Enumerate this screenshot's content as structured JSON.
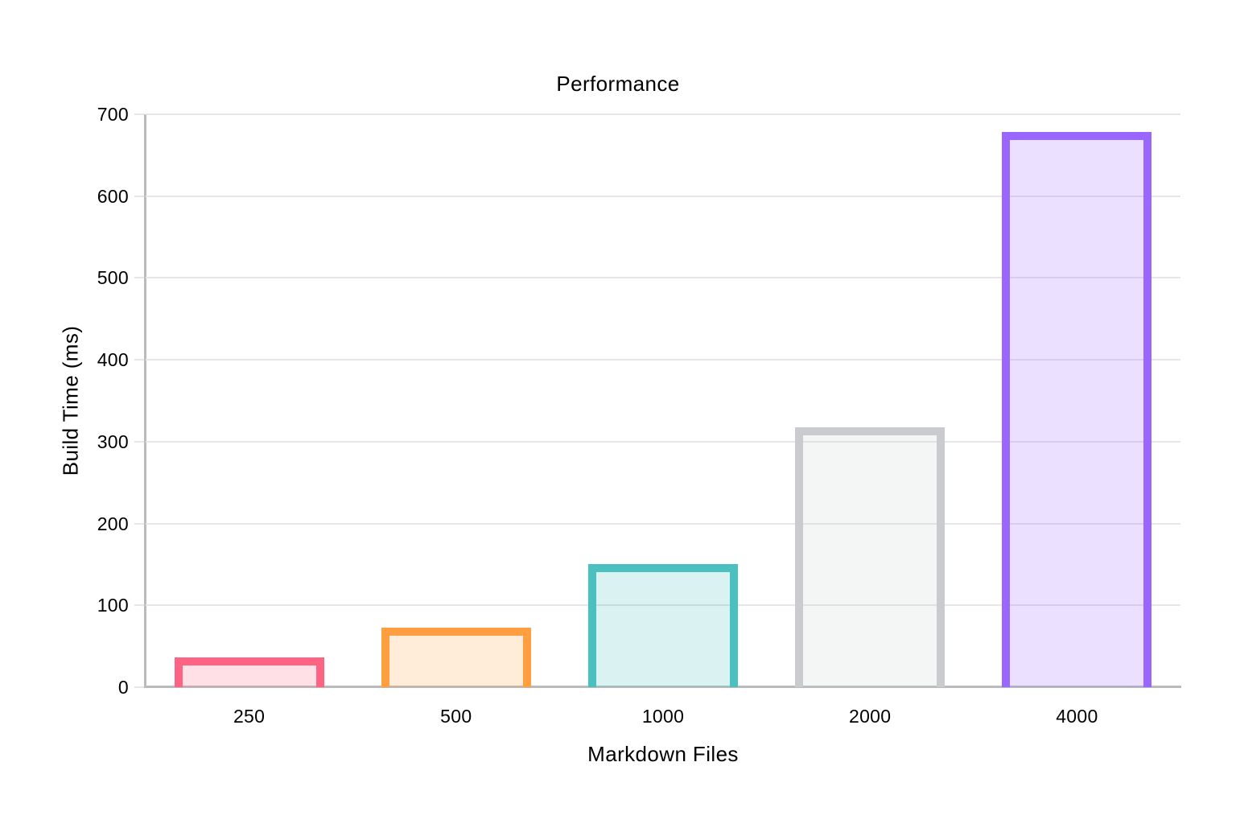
{
  "chart_data": {
    "type": "bar",
    "title": "Performance",
    "xlabel": "Markdown Files",
    "ylabel": "Build Time (ms)",
    "categories": [
      "250",
      "500",
      "1000",
      "2000",
      "4000"
    ],
    "values": [
      36,
      73,
      150,
      318,
      678
    ],
    "ylim": [
      0,
      700
    ],
    "yticks": [
      0,
      100,
      200,
      300,
      400,
      500,
      600,
      700
    ],
    "grid": "horizontal-only",
    "legend_position": "none",
    "bar_border_colors": [
      "#FF6384",
      "#FF9F40",
      "#4BC0C0",
      "#C9CBCF",
      "#9966FF"
    ],
    "bar_fill_colors": [
      "rgba(255,99,132,0.2)",
      "rgba(255,159,64,0.2)",
      "rgba(75,192,192,0.2)",
      "rgba(201,203,207,0.2)",
      "rgba(153,102,255,0.2)"
    ],
    "axis_line_color": "#B9BBBD",
    "gridline_color": "#E6E6E8",
    "tick_mark_color": "#E6E6E8",
    "text_color": "#000000",
    "background_color": "#FFFFFF"
  }
}
